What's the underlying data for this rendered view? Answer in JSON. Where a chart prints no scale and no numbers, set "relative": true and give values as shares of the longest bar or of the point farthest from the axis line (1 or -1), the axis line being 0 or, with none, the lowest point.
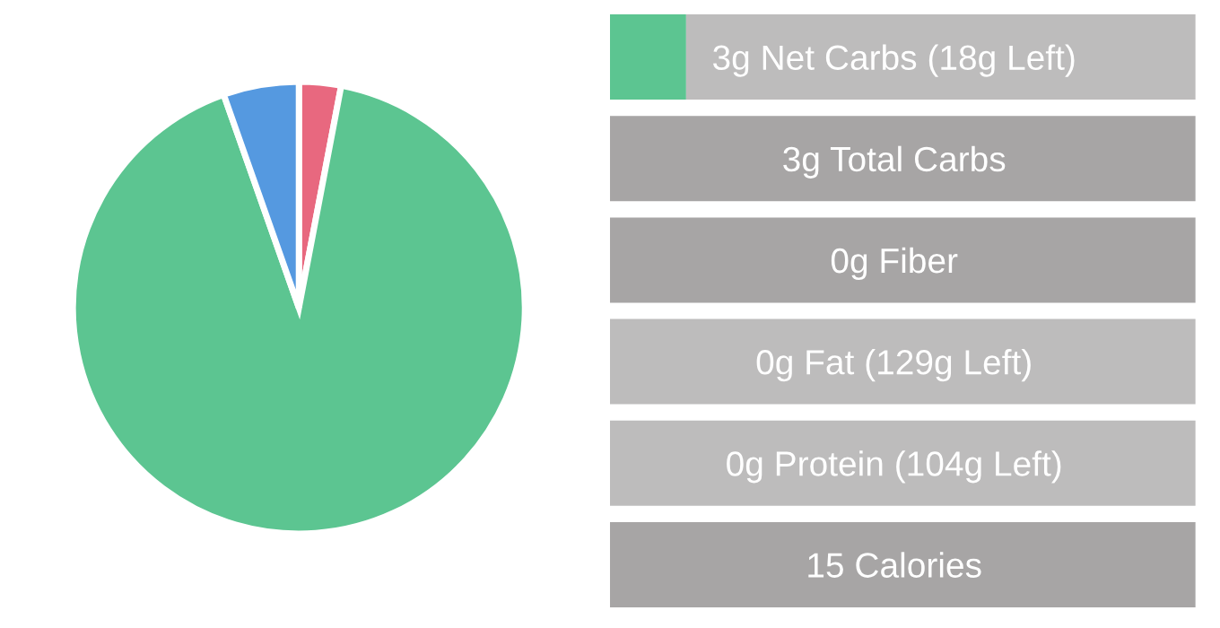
{
  "chart_data": [
    {
      "type": "pie",
      "categories": [
        null,
        null,
        null
      ],
      "values": [
        3,
        91.6,
        5.4
      ],
      "colors": [
        "#e8687f",
        "#5cc591",
        "#5599e0"
      ]
    },
    {
      "type": "bar",
      "orientation": "horizontal",
      "stacked": true,
      "relative": true,
      "categories": [
        "3g Net Carbs (18g Left)",
        "3g Total Carbs",
        "0g Fiber",
        "0g Fat (129g Left)",
        "0g Protein (104g Left)",
        "15 Calories"
      ],
      "series": [
        {
          "colors": [
            "#5cc591",
            "#5cc591",
            "#5cc591",
            "#5cc591",
            "#5cc591",
            "#5cc591"
          ],
          "values": [
            0.13,
            0,
            0,
            0,
            0,
            0
          ]
        },
        {
          "colors": [
            "#bdbcbc",
            "#a7a5a5",
            "#a7a5a5",
            "#bdbcbc",
            "#bdbcbc",
            "#a7a5a5"
          ],
          "values": [
            0.87,
            1,
            1,
            1,
            1,
            1
          ]
        }
      ]
    }
  ]
}
